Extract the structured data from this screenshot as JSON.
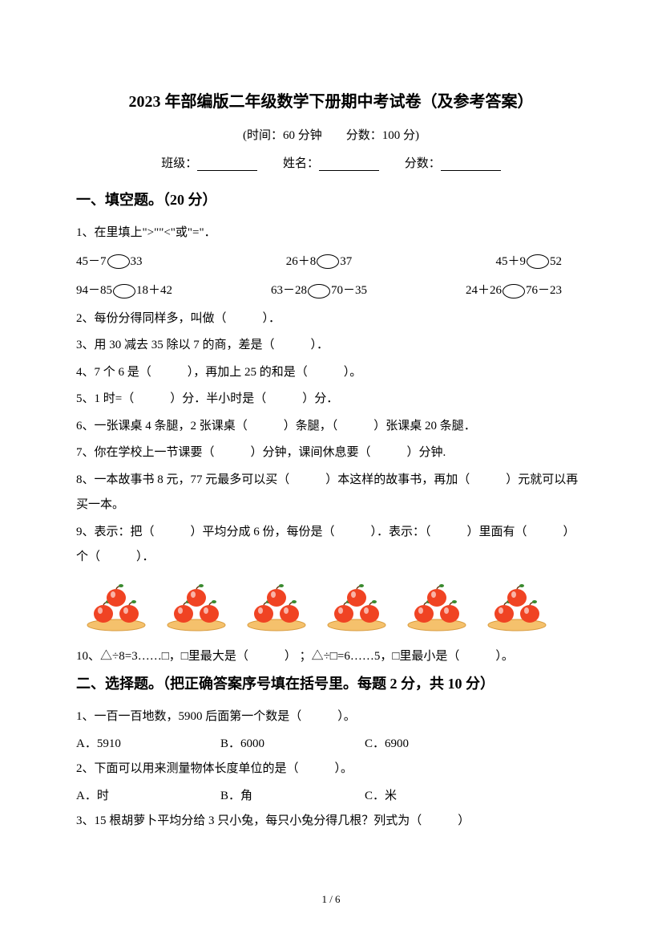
{
  "title": "2023 年部编版二年级数学下册期中考试卷（及参考答案）",
  "subtitle": "(时间：60 分钟　　分数：100 分)",
  "info": {
    "class_label": "班级：",
    "name_label": "姓名：",
    "score_label": "分数："
  },
  "section1": {
    "title": "一、填空题。（20 分）",
    "q1_intro": "1、在里填上\">\"\"<\"或\"=\"．",
    "row1": {
      "a_left": "45－7",
      "a_right": "33",
      "b_left": "26＋8",
      "b_right": "37",
      "c_left": "45＋9",
      "c_right": "52"
    },
    "row2": {
      "a_left": "94－85",
      "a_right": "18＋42",
      "b_left": "63－28",
      "b_right": "70－35",
      "c_left": "24＋26",
      "c_right": "76－23"
    },
    "q2": "2、每份分得同样多，叫做（　　　）．",
    "q3": "3、用 30 减去 35 除以 7 的商，差是（　　　）．",
    "q4": "4、7 个 6 是（　　　），再加上 25 的和是（　　　）。",
    "q5": "5、1 时=（　　　）分．半小时是（　　　）分．",
    "q6": "6、一张课桌 4 条腿，2 张课桌（　　　）条腿，（　　　）张课桌 20 条腿．",
    "q7": "7、你在学校上一节课要（　　　）分钟，课间休息要（　　　）分钟.",
    "q8": "8、一本故事书 8 元，77 元最多可以买（　　　）本这样的故事书，再加（　　　）元就可以再买一本。",
    "q9": "9、表示：把（　　　）平均分成 6 份，每份是（　　　）．表示：（　　　）里面有（　　　）个（　　　）．",
    "q10": "10、△÷8=3……□，□里最大是（　　　） ；△÷□=6……5，□里最小是（　　　）。"
  },
  "section2": {
    "title": "二、选择题。（把正确答案序号填在括号里。每题 2 分，共 10 分）",
    "q1": "1、一百一百地数，5900 后面第一个数是（　　　）。",
    "q1_a": "A．5910",
    "q1_b": "B．6000",
    "q1_c": "C．6900",
    "q2": "2、下面可以用来测量物体长度单位的是（　　　）。",
    "q2_a": "A．时",
    "q2_b": "B．角",
    "q2_c": "C．米",
    "q3": "3、15 根胡萝卜平均分给 3 只小兔，每只小兔分得几根？列式为（　　　）"
  },
  "apple": {
    "apple_color": "#f04323",
    "leaf_color": "#3a8a2f",
    "plate_color": "#f5c16c",
    "plate_edge": "#d89b3e"
  },
  "page_num": "1 / 6"
}
